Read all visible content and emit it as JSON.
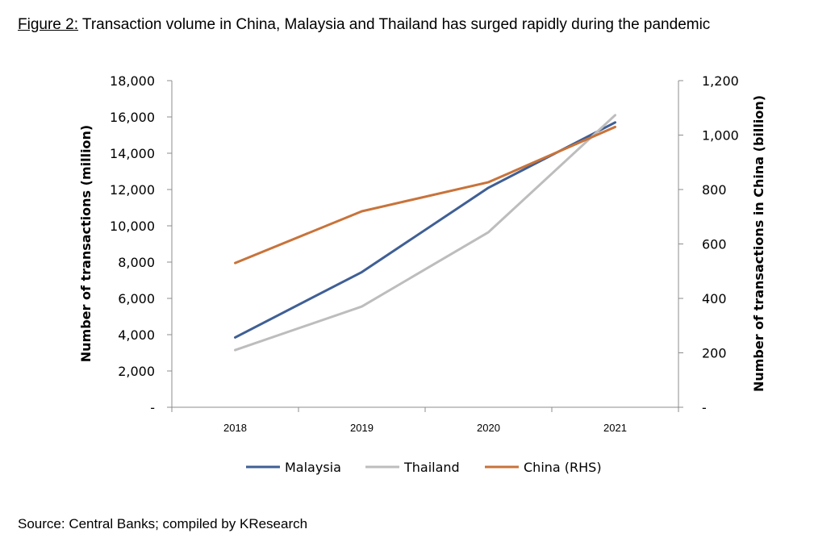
{
  "figure": {
    "label": "Figure 2:",
    "title": "Transaction volume in China, Malaysia and Thailand has surged rapidly during the pandemic"
  },
  "source": {
    "label": "Source:",
    "text": "Central Banks; compiled by KResearch"
  },
  "chart_data": {
    "type": "line",
    "categories": [
      "2018",
      "2019",
      "2020",
      "2021"
    ],
    "ylabel": "Number of transactions (million)",
    "y2label": "Number of transactions in China (billion)",
    "ylim": [
      0,
      18000
    ],
    "y2lim": [
      0,
      1200
    ],
    "yticks": [
      "-",
      "2,000",
      "4,000",
      "6,000",
      "8,000",
      "10,000",
      "12,000",
      "14,000",
      "16,000",
      "18,000"
    ],
    "ytick_values": [
      0,
      2000,
      4000,
      6000,
      8000,
      10000,
      12000,
      14000,
      16000,
      18000
    ],
    "y2ticks": [
      "-",
      "200",
      "400",
      "600",
      "800",
      "1,000",
      "1,200"
    ],
    "y2tick_values": [
      0,
      200,
      400,
      600,
      800,
      1000,
      1200
    ],
    "grid": false,
    "legend_position": "bottom",
    "series": [
      {
        "name": "Malaysia",
        "axis": "left",
        "color": "#3F5F95",
        "values": [
          3850,
          7450,
          12100,
          15700
        ]
      },
      {
        "name": "Thailand",
        "axis": "left",
        "color": "#BDBDBD",
        "values": [
          3150,
          5550,
          9650,
          16100
        ]
      },
      {
        "name": "China (RHS)",
        "axis": "right",
        "color": "#C8733A",
        "values": [
          530,
          720,
          827,
          1030
        ]
      }
    ]
  }
}
